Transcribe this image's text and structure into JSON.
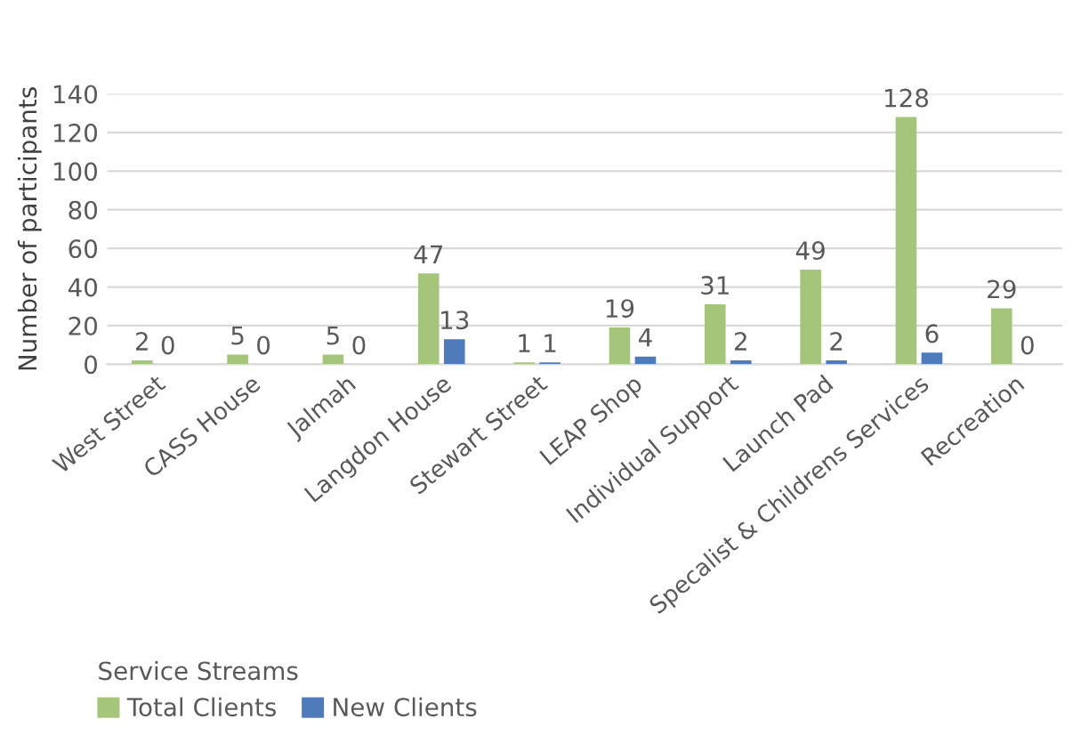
{
  "chart_data": {
    "type": "bar",
    "ylabel": "Number of participants",
    "legend_title": "Service Streams",
    "categories": [
      "West Street",
      "CASS House",
      "Jalmah",
      "Langdon House",
      "Stewart Street",
      "LEAP Shop",
      "Individual Support",
      "Launch Pad",
      "Specalist & Childrens Services",
      "Recreation"
    ],
    "series": [
      {
        "name": "Total Clients",
        "color": "#a5c57a",
        "values": [
          2,
          5,
          5,
          47,
          1,
          19,
          31,
          49,
          128,
          29
        ]
      },
      {
        "name": "New Clients",
        "color": "#4f7bbd",
        "values": [
          0,
          0,
          0,
          13,
          1,
          4,
          2,
          2,
          6,
          0
        ]
      }
    ],
    "ylim": [
      0,
      140
    ],
    "yticks": [
      0,
      20,
      40,
      60,
      80,
      100,
      120,
      140
    ],
    "grid": "y",
    "legend": "bottom left",
    "data_labels": true
  }
}
